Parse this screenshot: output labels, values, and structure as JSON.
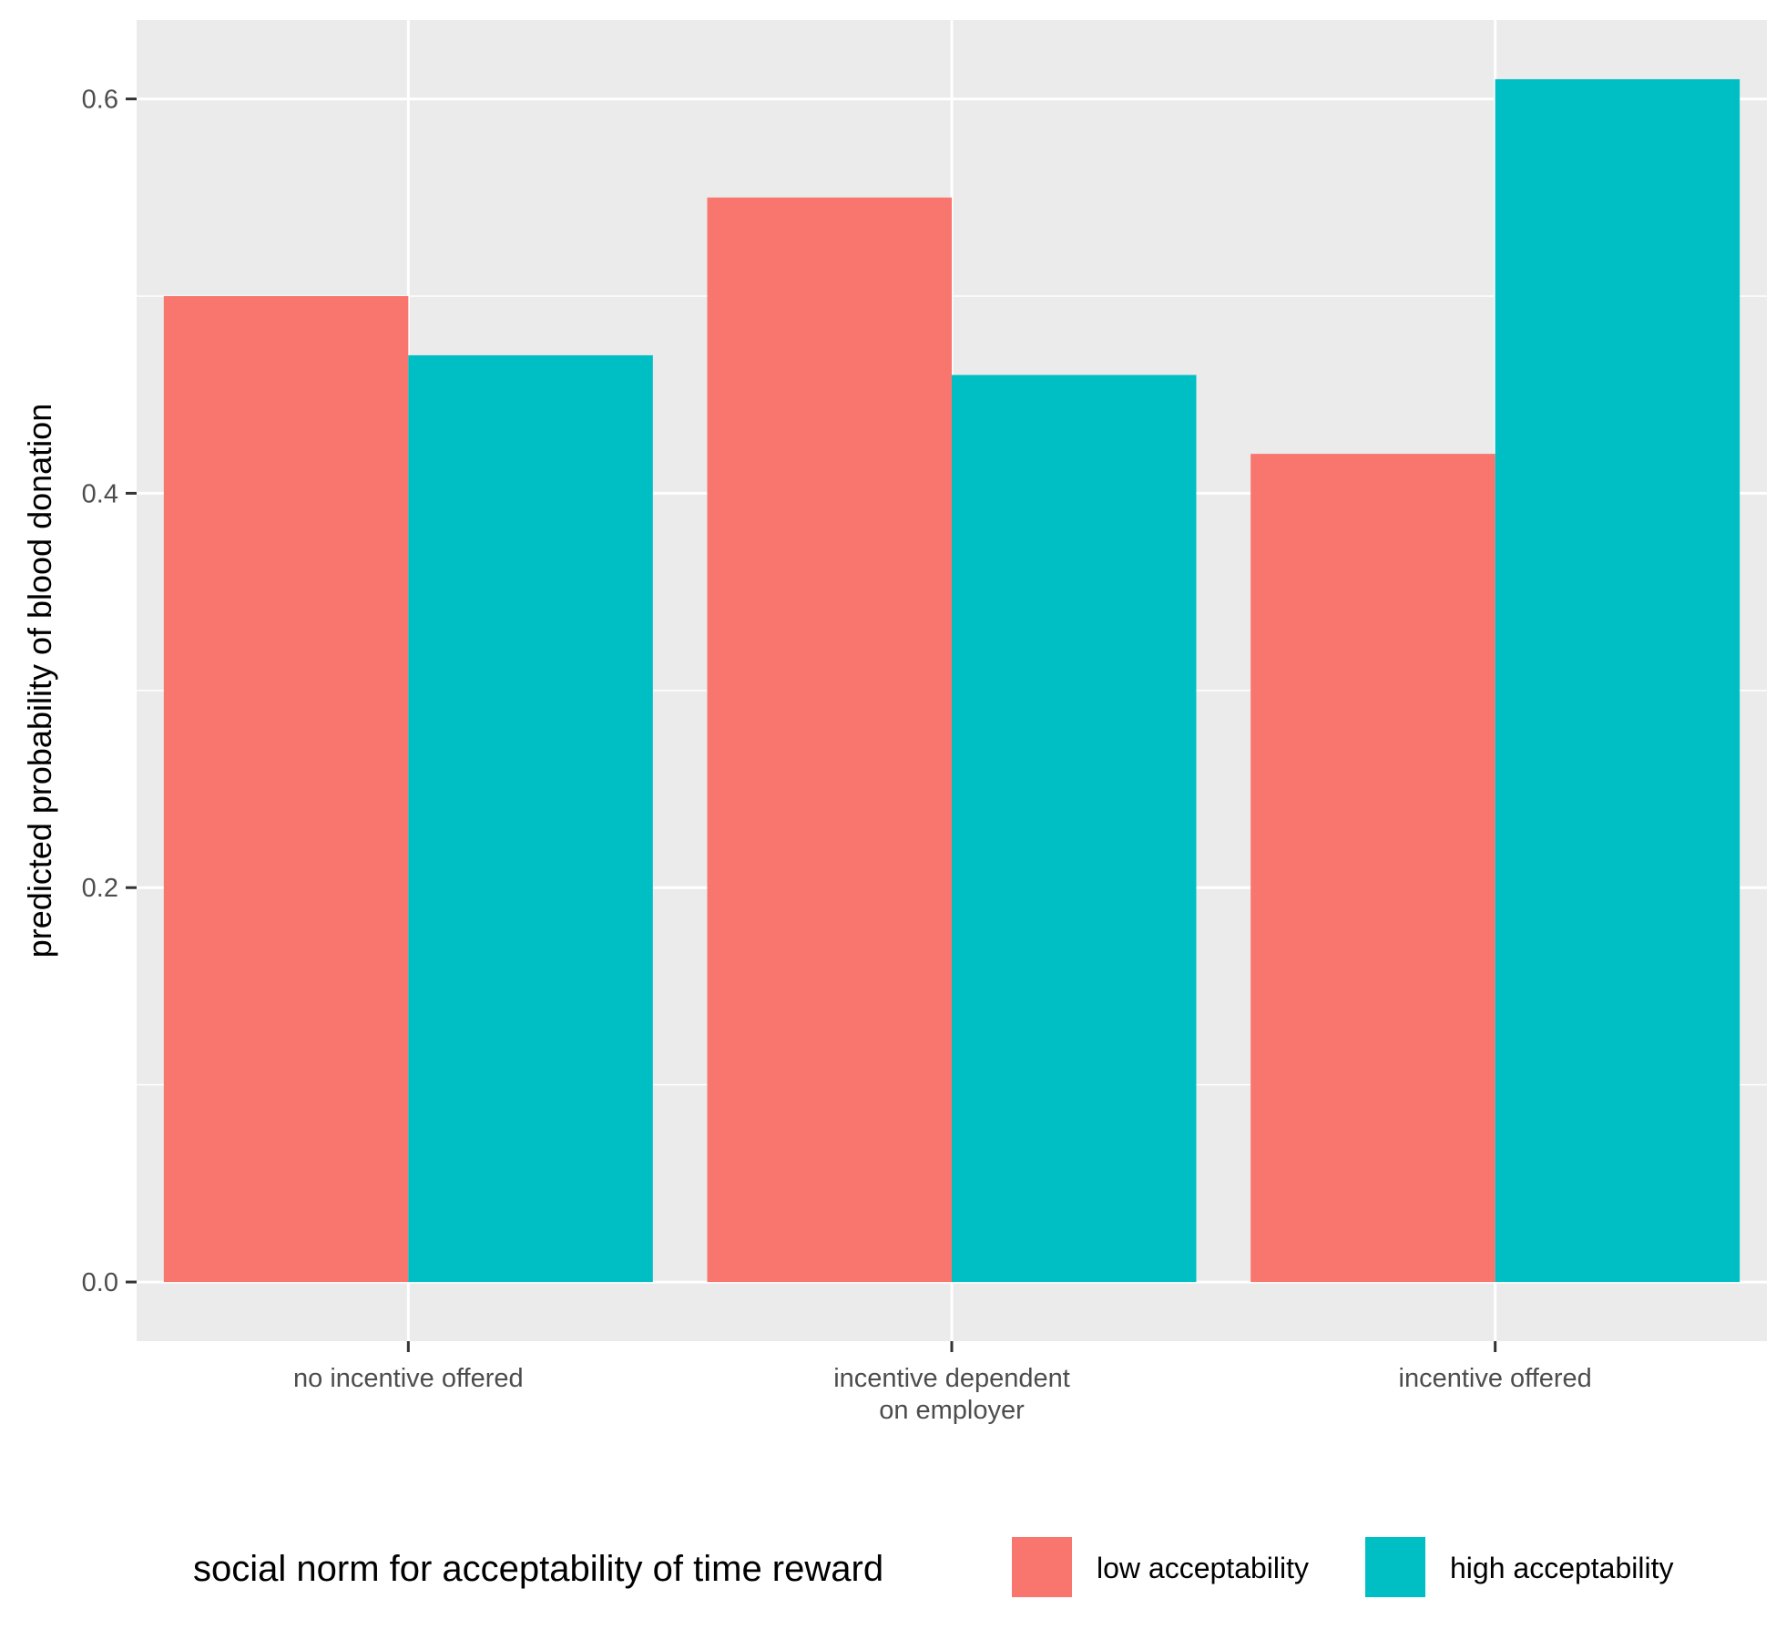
{
  "chart_data": {
    "type": "bar",
    "title": "",
    "xlabel": "",
    "ylabel": "predicted probability of blood donation",
    "ylim": [
      -0.03,
      0.64
    ],
    "yticks": [
      "0.0",
      "0.2",
      "0.4",
      "0.6"
    ],
    "categories": [
      [
        "no incentive offered"
      ],
      [
        "incentive dependent",
        "on employer"
      ],
      [
        "incentive offered"
      ]
    ],
    "series": [
      {
        "name": "low acceptability",
        "color": "#F8766D",
        "values": [
          0.5,
          0.55,
          0.42
        ]
      },
      {
        "name": "high acceptability",
        "color": "#00BFC4",
        "values": [
          0.47,
          0.46,
          0.61
        ]
      }
    ],
    "legend": {
      "title": "social norm for acceptability of time reward",
      "position": "bottom"
    },
    "grid": true,
    "panel_background": "#EBEBEB",
    "grid_color": "#FFFFFF"
  }
}
